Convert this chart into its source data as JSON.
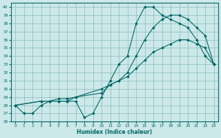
{
  "xlabel": "Humidex (Indice chaleur)",
  "xlim": [
    -0.5,
    23.5
  ],
  "ylim": [
    26,
    40.5
  ],
  "yticks": [
    26,
    27,
    28,
    29,
    30,
    31,
    32,
    33,
    34,
    35,
    36,
    37,
    38,
    39,
    40
  ],
  "xticks": [
    0,
    1,
    2,
    3,
    4,
    5,
    6,
    7,
    8,
    9,
    10,
    11,
    12,
    13,
    14,
    15,
    16,
    17,
    18,
    19,
    20,
    21,
    22,
    23
  ],
  "bg_color": "#cce8e8",
  "grid_color": "#88bbbb",
  "line_color": "#006666",
  "line1_x": [
    0,
    1,
    2,
    3,
    4,
    5,
    6,
    7,
    8,
    9,
    10,
    11,
    12,
    13,
    14,
    15,
    16,
    17,
    18,
    19,
    20,
    21,
    22,
    23
  ],
  "line1_y": [
    28,
    27,
    27,
    28,
    28.5,
    28.5,
    28.5,
    28.5,
    26.5,
    27,
    29,
    31,
    33,
    34,
    38,
    40,
    40,
    39,
    38.5,
    38,
    37.5,
    36,
    34,
    33
  ],
  "line2_x": [
    0,
    3,
    4,
    5,
    6,
    7,
    10,
    11,
    12,
    13,
    14,
    15,
    16,
    17,
    18,
    19,
    20,
    21,
    22,
    23
  ],
  "line2_y": [
    28,
    28.5,
    28.5,
    28.5,
    28.5,
    29,
    29.5,
    30.5,
    31,
    32,
    34,
    36,
    37.5,
    38.5,
    39,
    39,
    38.5,
    37.5,
    36.5,
    33
  ],
  "line3_x": [
    0,
    3,
    4,
    5,
    6,
    7,
    10,
    11,
    12,
    13,
    14,
    15,
    16,
    17,
    18,
    19,
    20,
    21,
    22,
    23
  ],
  "line3_y": [
    28,
    28.5,
    28.5,
    28.8,
    28.8,
    29,
    30,
    30.5,
    31,
    31.5,
    32.5,
    33.5,
    34.5,
    35,
    35.5,
    36,
    36,
    35.5,
    35,
    33
  ]
}
